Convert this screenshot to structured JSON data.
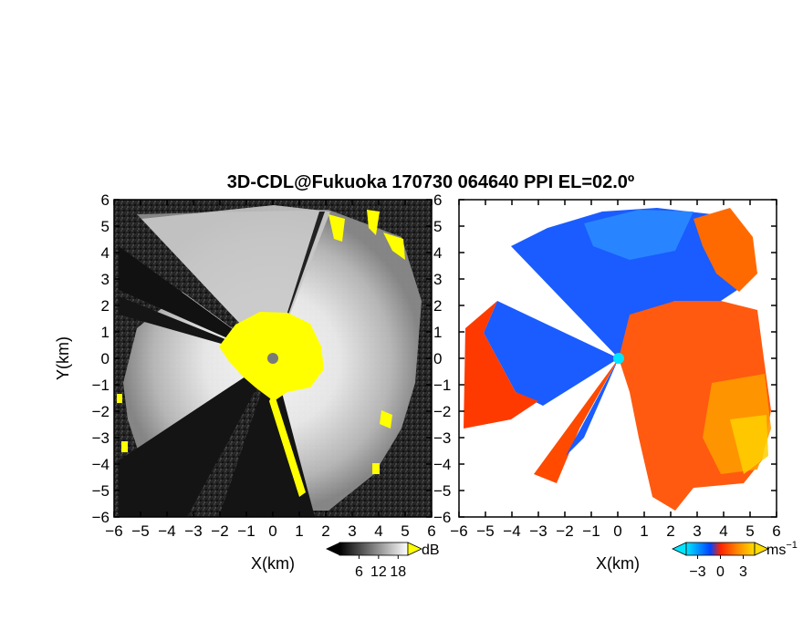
{
  "chart_data": [
    {
      "type": "heatmap",
      "panel": "reflectivity",
      "title": "3D-CDL@Fukuoka 170730 064640 PPI EL=02.0º",
      "xlabel": "X(km)",
      "ylabel": "Y(km)",
      "xlim": [
        -6,
        6
      ],
      "ylim": [
        -6,
        6
      ],
      "x_ticks": [
        -6,
        -5,
        -4,
        -3,
        -2,
        -1,
        0,
        1,
        2,
        3,
        4,
        5,
        6
      ],
      "y_ticks": [
        -6,
        -5,
        -4,
        -3,
        -2,
        -1,
        0,
        1,
        2,
        3,
        4,
        5,
        6
      ],
      "x_tick_labels": [
        "−6",
        "−5",
        "−4",
        "−3",
        "−2",
        "−1",
        "0",
        "1",
        "2",
        "3",
        "4",
        "5",
        "6"
      ],
      "y_tick_labels": [
        "−6",
        "−5",
        "−4",
        "−3",
        "−2",
        "−1",
        "0",
        "1",
        "2",
        "3",
        "4",
        "5",
        "6"
      ],
      "colorbar": {
        "unit": "dB",
        "ticks": [
          6,
          12,
          18
        ],
        "tick_labels": [
          "6",
          "12",
          "18"
        ],
        "colormap": "grayscale",
        "overflow_color": "#ffff00"
      },
      "background_color": "#1a1a1a",
      "radar_origin": [
        0,
        0
      ]
    },
    {
      "type": "heatmap",
      "panel": "doppler_velocity",
      "xlabel": "X(km)",
      "xlim": [
        -6,
        6
      ],
      "ylim": [
        -6,
        6
      ],
      "x_ticks": [
        -6,
        -5,
        -4,
        -3,
        -2,
        -1,
        0,
        1,
        2,
        3,
        4,
        5,
        6
      ],
      "y_ticks": [
        -6,
        -5,
        -4,
        -3,
        -2,
        -1,
        0,
        1,
        2,
        3,
        4,
        5,
        6
      ],
      "x_tick_labels": [
        "−6",
        "−5",
        "−4",
        "−3",
        "−2",
        "−1",
        "0",
        "1",
        "2",
        "3",
        "4",
        "5",
        "6"
      ],
      "y_tick_labels": [
        "−6",
        "−5",
        "−4",
        "−3",
        "−2",
        "−1",
        "0",
        "1",
        "2",
        "3",
        "4",
        "5",
        "6"
      ],
      "colorbar": {
        "unit": "ms",
        "unit_exponent": "−1",
        "ticks": [
          -3,
          0,
          3
        ],
        "tick_labels": [
          "−3",
          "0",
          "3"
        ],
        "colors": [
          "#00e5ff",
          "#0044ff",
          "#ff2200",
          "#ff8800",
          "#ffdd00"
        ]
      },
      "background_color": "#ffffff",
      "radar_origin": [
        0,
        0
      ],
      "origin_marker_color": "#00e5ff"
    }
  ]
}
